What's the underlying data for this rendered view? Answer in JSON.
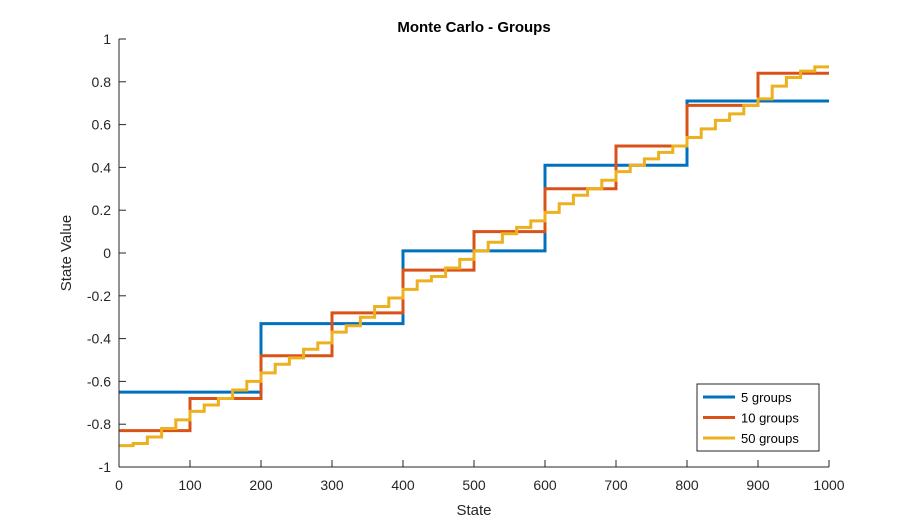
{
  "chart_data": {
    "type": "line",
    "title": "Monte Carlo - Groups",
    "xlabel": "State",
    "ylabel": "State Value",
    "xlim": [
      0,
      1000
    ],
    "ylim": [
      -1,
      1
    ],
    "xticks": [
      0,
      100,
      200,
      300,
      400,
      500,
      600,
      700,
      800,
      900,
      1000
    ],
    "xtick_labels": [
      "0",
      "100",
      "200",
      "300",
      "400",
      "500",
      "600",
      "700",
      "800",
      "900",
      "1000"
    ],
    "yticks": [
      -1,
      -0.8,
      -0.6,
      -0.4,
      -0.2,
      0,
      0.2,
      0.4,
      0.6,
      0.8,
      1
    ],
    "ytick_labels": [
      "-1",
      "-0.8",
      "-0.6",
      "-0.4",
      "-0.2",
      "0",
      "0.2",
      "0.4",
      "0.6",
      "0.8",
      "1"
    ],
    "grid": false,
    "legend_position": "bottom-right",
    "series": [
      {
        "name": "5 groups",
        "color": "#0072BD",
        "step_width": 200,
        "values": [
          -0.65,
          -0.33,
          0.01,
          0.41,
          0.71
        ]
      },
      {
        "name": "10 groups",
        "color": "#D95319",
        "step_width": 100,
        "values": [
          -0.83,
          -0.68,
          -0.48,
          -0.28,
          -0.08,
          0.1,
          0.3,
          0.5,
          0.69,
          0.84
        ]
      },
      {
        "name": "50 groups",
        "color": "#EDB120",
        "step_width": 20,
        "values": [
          -0.9,
          -0.89,
          -0.86,
          -0.82,
          -0.78,
          -0.74,
          -0.71,
          -0.68,
          -0.64,
          -0.6,
          -0.56,
          -0.52,
          -0.49,
          -0.45,
          -0.42,
          -0.37,
          -0.34,
          -0.3,
          -0.25,
          -0.21,
          -0.17,
          -0.13,
          -0.11,
          -0.07,
          -0.03,
          0.01,
          0.05,
          0.09,
          0.12,
          0.15,
          0.19,
          0.23,
          0.27,
          0.3,
          0.34,
          0.38,
          0.41,
          0.44,
          0.47,
          0.5,
          0.54,
          0.58,
          0.62,
          0.65,
          0.69,
          0.72,
          0.78,
          0.82,
          0.85,
          0.87
        ]
      }
    ]
  }
}
